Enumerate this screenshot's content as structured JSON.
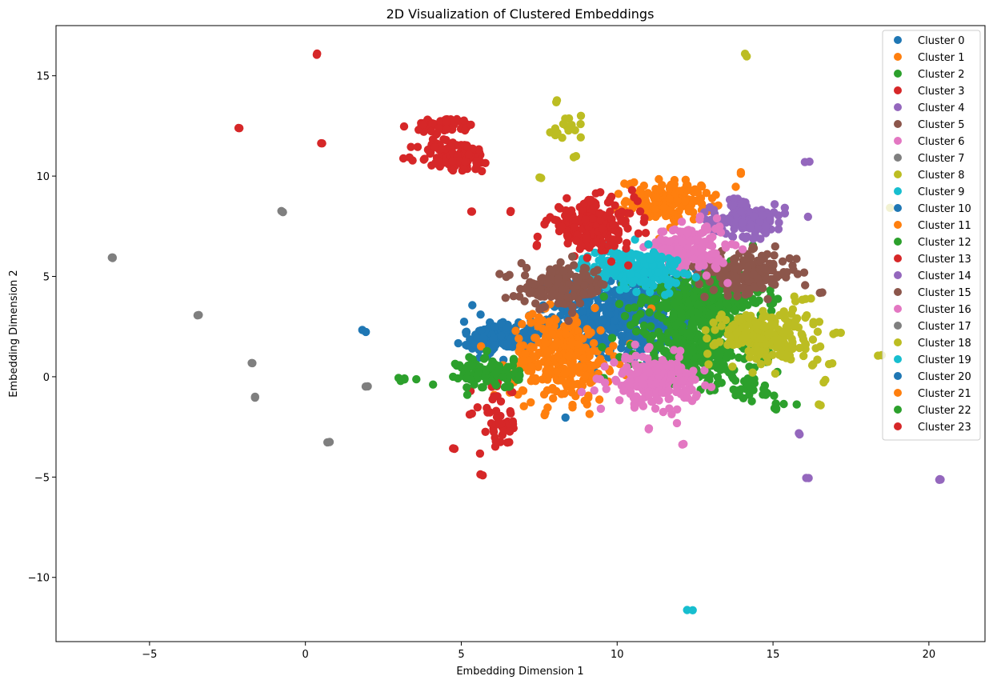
{
  "chart_data": {
    "type": "scatter",
    "title": "2D Visualization of Clustered Embeddings",
    "xlabel": "Embedding Dimension 1",
    "ylabel": "Embedding Dimension 2",
    "xlim": [
      -8,
      21.8
    ],
    "ylim": [
      -13.2,
      17.5
    ],
    "xticks": [
      -5,
      0,
      5,
      10,
      15,
      20
    ],
    "yticks": [
      -10,
      -5,
      0,
      5,
      10,
      15
    ],
    "xtick_labels": [
      "−5",
      "0",
      "5",
      "10",
      "15",
      "20"
    ],
    "ytick_labels": [
      "−10",
      "−5",
      "0",
      "5",
      "10",
      "15"
    ],
    "grid": false,
    "legend_position": "top-right",
    "series": [
      {
        "name": "Cluster 0",
        "color": "#1f77b4",
        "blobs": [
          [
            10.2,
            3.0,
            1.2,
            1.2,
            500
          ]
        ]
      },
      {
        "name": "Cluster 1",
        "color": "#ff7f0e",
        "blobs": [
          [
            11.7,
            8.8,
            0.7,
            0.5,
            160
          ]
        ]
      },
      {
        "name": "Cluster 2",
        "color": "#2ca02c",
        "blobs": [
          [
            12.7,
            3.8,
            1.0,
            0.8,
            320
          ]
        ]
      },
      {
        "name": "Cluster 3",
        "color": "#d62728",
        "blobs": [
          [
            4.8,
            11.0,
            0.6,
            0.4,
            110
          ],
          [
            4.5,
            12.5,
            0.5,
            0.2,
            50
          ],
          [
            0.35,
            16.1,
            0.04,
            0.04,
            2
          ],
          [
            -2.15,
            12.45,
            0.04,
            0.04,
            2
          ],
          [
            0.5,
            11.65,
            0.04,
            0.04,
            2
          ],
          [
            6.6,
            8.25,
            0.04,
            0.04,
            2
          ],
          [
            7.4,
            6.55,
            0.04,
            0.04,
            2
          ],
          [
            5.4,
            8.25,
            0.05,
            0.03,
            2
          ]
        ]
      },
      {
        "name": "Cluster 4",
        "color": "#9467bd",
        "blobs": [
          [
            14.2,
            7.8,
            0.6,
            0.4,
            120
          ],
          [
            16.1,
            10.7,
            0.04,
            0.04,
            2
          ],
          [
            16.1,
            -5.05,
            0.04,
            0.04,
            2
          ],
          [
            20.4,
            -5.15,
            0.05,
            0.04,
            3
          ],
          [
            15.85,
            -2.85,
            0.03,
            0.03,
            2
          ]
        ]
      },
      {
        "name": "Cluster 5",
        "color": "#8c564b",
        "blobs": [
          [
            14.2,
            5.2,
            0.8,
            0.5,
            170
          ],
          [
            16.5,
            4.15,
            0.05,
            0.04,
            2
          ]
        ]
      },
      {
        "name": "Cluster 6",
        "color": "#e377c2",
        "blobs": [
          [
            12.3,
            6.4,
            0.6,
            0.6,
            180
          ],
          [
            11.05,
            -2.6,
            0.04,
            0.04,
            2
          ],
          [
            12.1,
            -3.35,
            0.04,
            0.04,
            2
          ]
        ]
      },
      {
        "name": "Cluster 7",
        "color": "#7f7f7f",
        "blobs": [
          [
            -6.2,
            5.95,
            0.05,
            0.05,
            3
          ],
          [
            -0.75,
            8.3,
            0.05,
            0.04,
            2
          ],
          [
            -3.45,
            3.1,
            0.04,
            0.04,
            2
          ],
          [
            -1.65,
            0.65,
            0.05,
            0.05,
            2
          ],
          [
            -1.55,
            -1.05,
            0.04,
            0.04,
            2
          ],
          [
            0.65,
            -3.25,
            0.05,
            0.04,
            2
          ],
          [
            1.95,
            -0.5,
            0.03,
            0.04,
            2
          ]
        ]
      },
      {
        "name": "Cluster 8",
        "color": "#bcbd22",
        "blobs": [
          [
            14.14,
            16.0,
            0.04,
            0.04,
            2
          ],
          [
            8.05,
            13.75,
            0.04,
            0.04,
            2
          ],
          [
            8.45,
            12.5,
            0.3,
            0.3,
            12
          ],
          [
            7.95,
            12.1,
            0.1,
            0.05,
            3
          ],
          [
            7.5,
            9.9,
            0.05,
            0.05,
            2
          ],
          [
            8.65,
            11.0,
            0.04,
            0.04,
            2
          ],
          [
            16.05,
            3.9,
            0.1,
            0.04,
            3
          ],
          [
            16.6,
            -0.2,
            0.04,
            0.04,
            2
          ],
          [
            16.5,
            -1.4,
            0.05,
            0.04,
            2
          ],
          [
            16.3,
            0.55,
            0.05,
            0.04,
            2
          ],
          [
            16.85,
            0.65,
            0.04,
            0.04,
            2
          ],
          [
            17.2,
            2.2,
            0.15,
            0.04,
            3
          ],
          [
            18.4,
            1.1,
            0.04,
            0.04,
            2
          ],
          [
            18.7,
            8.4,
            0.03,
            0.03,
            1
          ]
        ]
      },
      {
        "name": "Cluster 9",
        "color": "#17becf",
        "blobs": [
          [
            10.5,
            5.4,
            0.8,
            0.5,
            200
          ],
          [
            12.3,
            -11.65,
            0.05,
            0.05,
            2
          ]
        ]
      },
      {
        "name": "Cluster 10",
        "color": "#1f77b4",
        "blobs": [
          [
            6.3,
            2.0,
            0.6,
            0.4,
            140
          ],
          [
            1.85,
            2.3,
            0.05,
            0.04,
            2
          ]
        ]
      },
      {
        "name": "Cluster 11",
        "color": "#ff7f0e",
        "blobs": [
          [
            8.2,
            1.0,
            0.8,
            1.1,
            300
          ],
          [
            13.95,
            10.15,
            0.04,
            0.04,
            2
          ]
        ]
      },
      {
        "name": "Cluster 12",
        "color": "#2ca02c",
        "blobs": [
          [
            12.6,
            1.3,
            1.0,
            0.8,
            320
          ],
          [
            14.2,
            -0.7,
            0.5,
            0.4,
            30
          ],
          [
            15.2,
            -1.5,
            0.3,
            0.1,
            6
          ]
        ]
      },
      {
        "name": "Cluster 13",
        "color": "#d62728",
        "blobs": [
          [
            9.2,
            7.6,
            0.7,
            0.6,
            220
          ],
          [
            6.2,
            -2.2,
            0.3,
            0.9,
            45
          ],
          [
            5.3,
            -1.9,
            0.04,
            0.04,
            2
          ],
          [
            4.75,
            -3.65,
            0.04,
            0.04,
            2
          ],
          [
            5.65,
            -4.9,
            0.04,
            0.04,
            2
          ]
        ]
      },
      {
        "name": "Cluster 14",
        "color": "#9467bd",
        "blobs": [
          [
            13.9,
            8.5,
            0.2,
            0.2,
            15
          ]
        ]
      },
      {
        "name": "Cluster 15",
        "color": "#8c564b",
        "blobs": [
          [
            8.3,
            4.5,
            0.7,
            0.5,
            150
          ]
        ]
      },
      {
        "name": "Cluster 16",
        "color": "#e377c2",
        "blobs": [
          [
            11.2,
            -0.2,
            0.7,
            0.6,
            220
          ]
        ]
      },
      {
        "name": "Cluster 17",
        "color": "#7f7f7f",
        "blobs": []
      },
      {
        "name": "Cluster 18",
        "color": "#bcbd22",
        "blobs": [
          [
            14.6,
            2.1,
            0.7,
            0.6,
            200
          ],
          [
            15.7,
            2.3,
            0.4,
            0.7,
            25
          ]
        ]
      },
      {
        "name": "Cluster 19",
        "color": "#17becf",
        "blobs": []
      },
      {
        "name": "Cluster 20",
        "color": "#1f77b4",
        "blobs": []
      },
      {
        "name": "Cluster 21",
        "color": "#ff7f0e",
        "blobs": []
      },
      {
        "name": "Cluster 22",
        "color": "#2ca02c",
        "blobs": [
          [
            5.9,
            0.2,
            0.5,
            0.4,
            110
          ],
          [
            3.1,
            -0.15,
            0.15,
            0.06,
            5
          ]
        ]
      },
      {
        "name": "Cluster 23",
        "color": "#d62728",
        "blobs": []
      }
    ]
  }
}
